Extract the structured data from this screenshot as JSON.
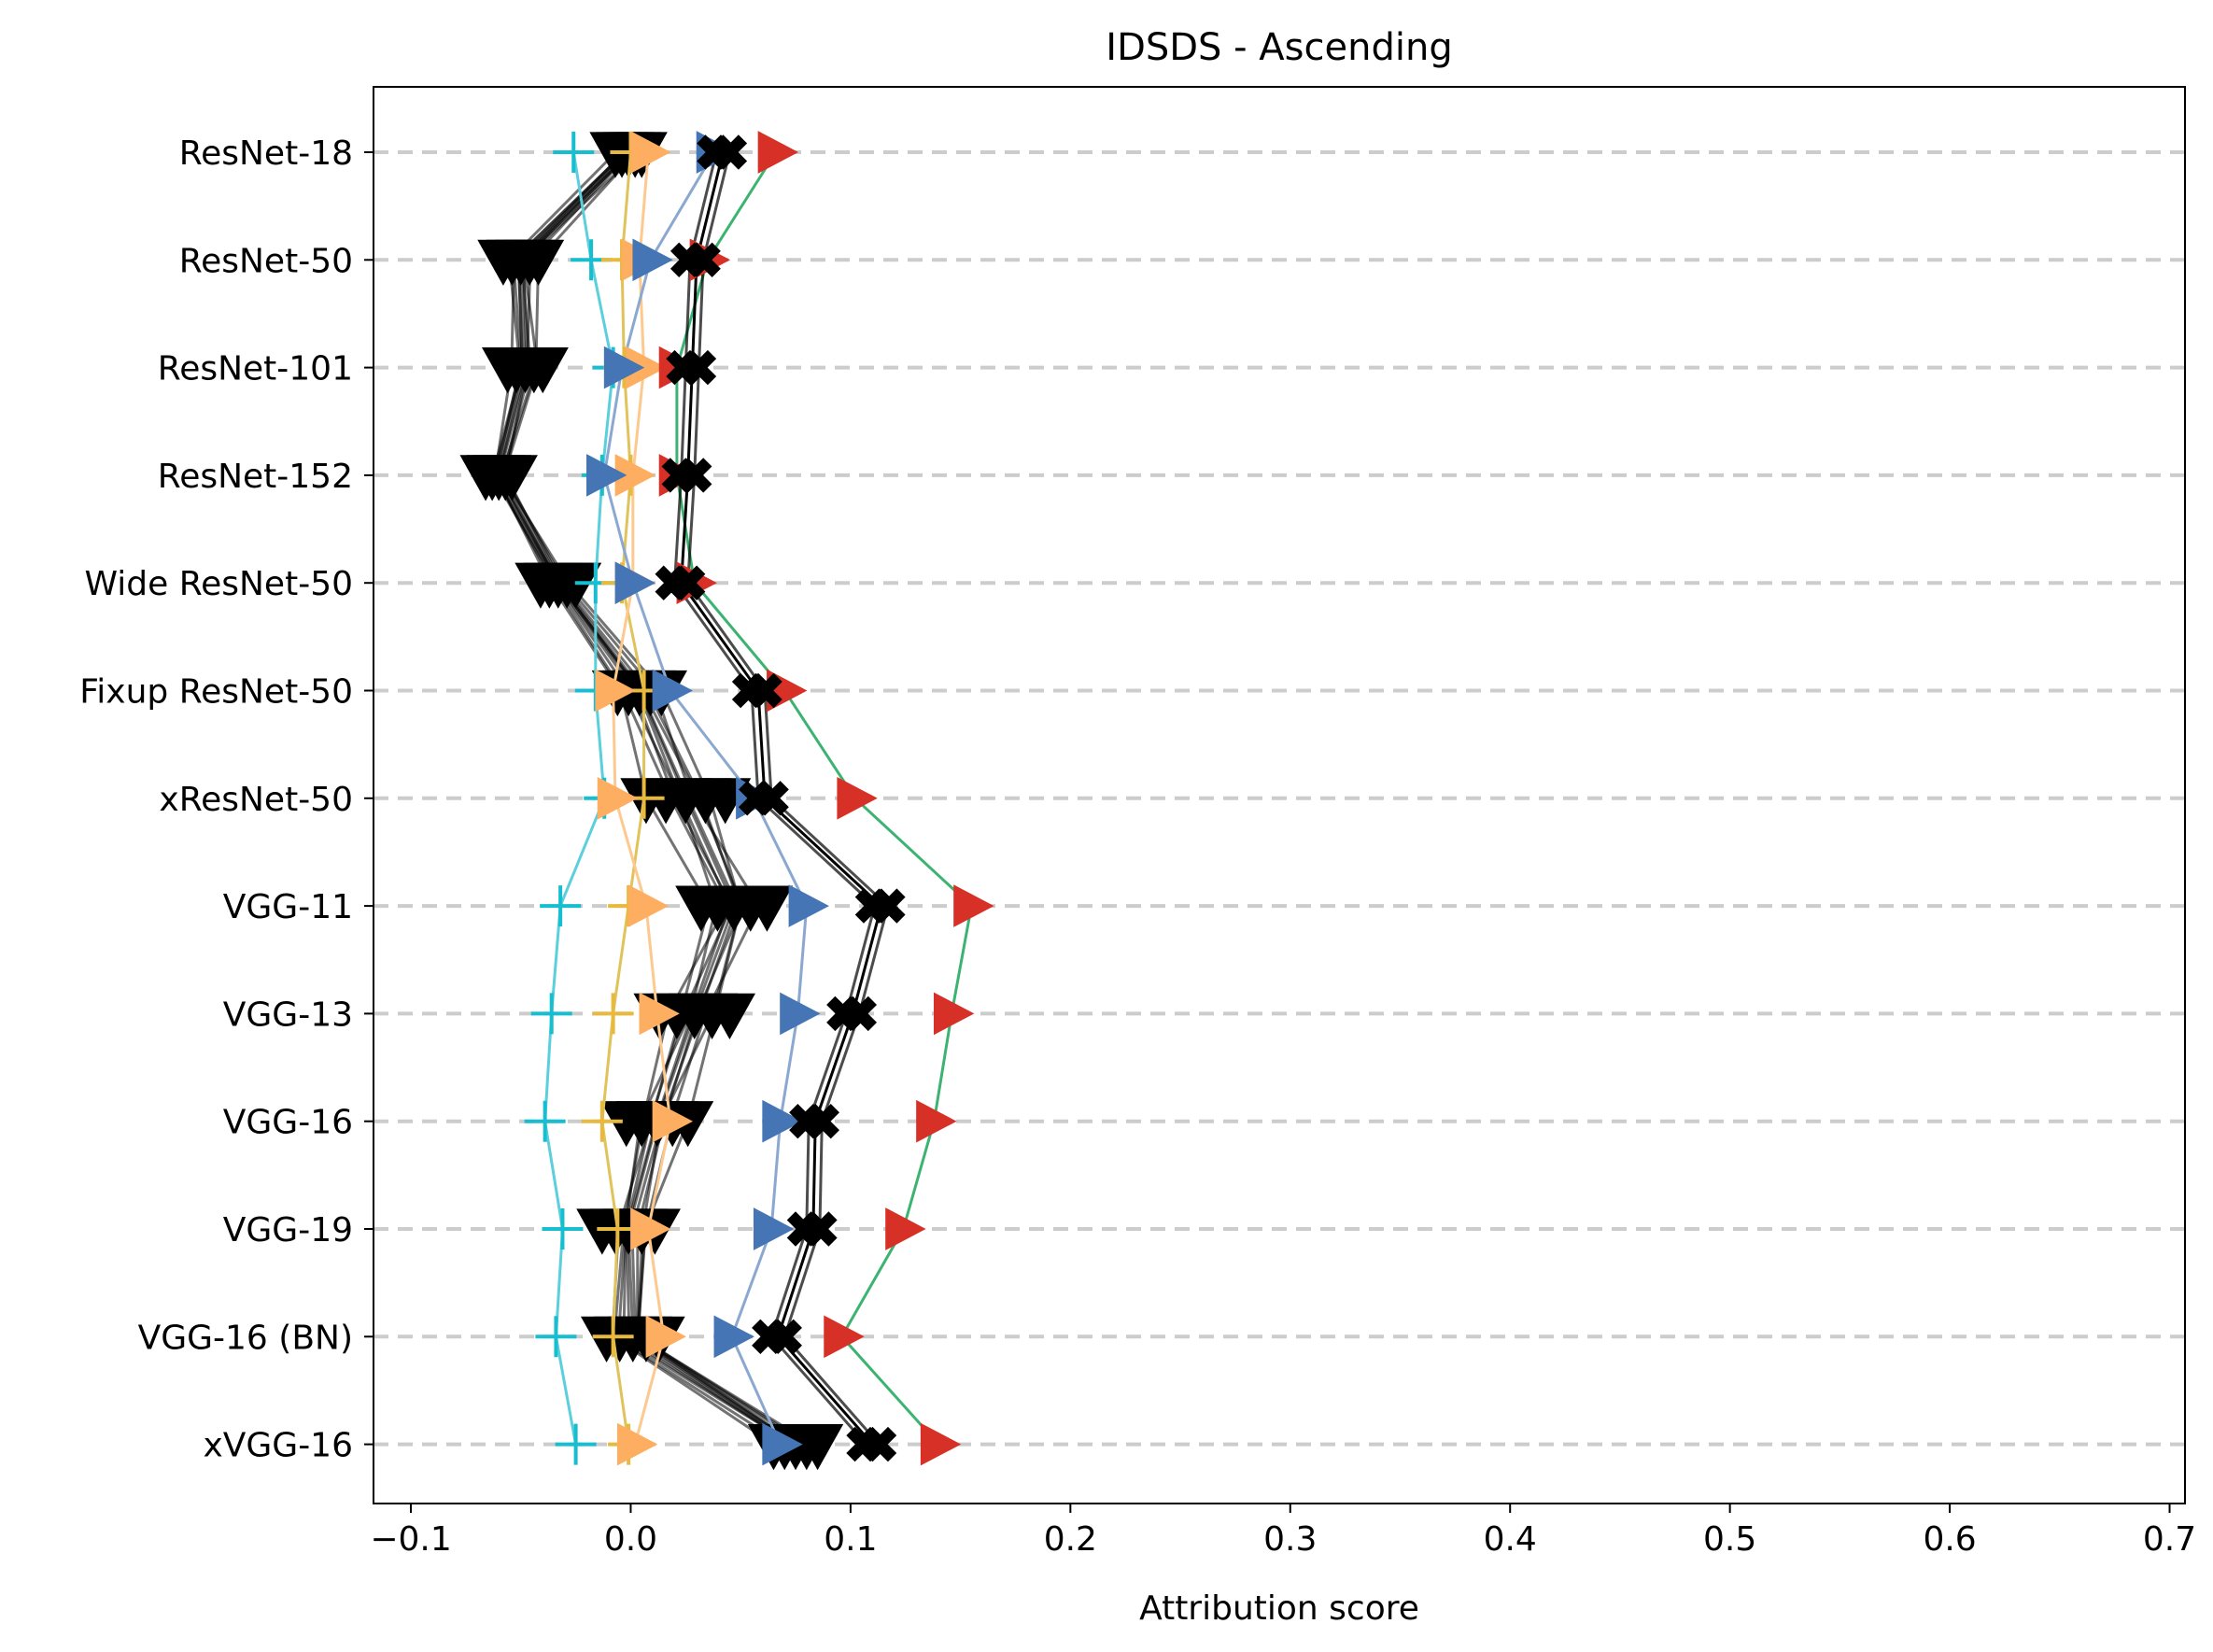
{
  "chart_data": {
    "type": "scatter",
    "title": "IDSDS - Ascending",
    "xlabel": "Attribution score",
    "ylabel": "",
    "xlim": [
      -0.117,
      0.707
    ],
    "xticks": [
      -0.1,
      0.0,
      0.1,
      0.2,
      0.3,
      0.4,
      0.5,
      0.6,
      0.7
    ],
    "xtick_labels": [
      "−0.1",
      "0.0",
      "0.1",
      "0.2",
      "0.3",
      "0.4",
      "0.5",
      "0.6",
      "0.7"
    ],
    "categories": [
      "ResNet-18",
      "ResNet-50",
      "ResNet-101",
      "ResNet-152",
      "Wide ResNet-50",
      "Fixup ResNet-50",
      "xResNet-50",
      "VGG-11",
      "VGG-13",
      "VGG-16",
      "VGG-19",
      "VGG-16 (BN)",
      "xVGG-16"
    ],
    "grid": "horizontal dashed",
    "legend": "none",
    "series": [
      {
        "marker": "plus",
        "color": "#17becf",
        "line_color": "#5bcfdc",
        "values": [
          -0.026,
          -0.018,
          -0.008,
          -0.013,
          -0.016,
          -0.016,
          -0.012,
          -0.032,
          -0.036,
          -0.039,
          -0.031,
          -0.034,
          -0.025
        ]
      },
      {
        "marker": "plus",
        "color": "#e8b93c",
        "line_color": "#e0c35a",
        "values": [
          0.0,
          -0.004,
          -0.003,
          0.0,
          -0.004,
          0.006,
          0.006,
          -0.001,
          -0.008,
          -0.013,
          -0.006,
          -0.008,
          -0.001
        ]
      },
      {
        "marker": "triangle-right",
        "color": "#fdae61",
        "line_color": "#fdc98f",
        "values": [
          0.008,
          0.004,
          0.006,
          0.001,
          0.001,
          -0.008,
          -0.007,
          0.007,
          0.012,
          0.018,
          0.008,
          0.015,
          0.002
        ]
      },
      {
        "marker": "triangle-right",
        "color": "#4575b4",
        "line_color": "#8ba8d0",
        "values": [
          0.038,
          0.009,
          -0.004,
          -0.012,
          0.001,
          0.018,
          0.056,
          0.08,
          0.076,
          0.068,
          0.064,
          0.046,
          0.068
        ]
      },
      {
        "marker": "triangle-right",
        "color": "#d73027",
        "line_color": "#3cb371",
        "values": [
          0.066,
          0.035,
          0.021,
          0.021,
          0.029,
          0.07,
          0.102,
          0.155,
          0.146,
          0.138,
          0.124,
          0.096,
          0.14
        ]
      },
      {
        "marker": "x-thick",
        "color": "#000000",
        "line_color": "#000000",
        "values": [
          0.042,
          0.03,
          0.028,
          0.026,
          0.023,
          0.058,
          0.061,
          0.114,
          0.101,
          0.084,
          0.083,
          0.067,
          0.11
        ]
      }
    ],
    "black_bundle": {
      "marker": "triangle-down",
      "color": "#000000",
      "center": [
        -0.001,
        -0.05,
        -0.048,
        -0.06,
        -0.033,
        0.004,
        0.025,
        0.047,
        0.029,
        0.012,
        -0.001,
        0.001,
        0.075
      ],
      "spread": [
        0.006,
        0.008,
        0.008,
        0.006,
        0.008,
        0.01,
        0.018,
        0.015,
        0.016,
        0.014,
        0.012,
        0.012,
        0.01
      ]
    }
  }
}
